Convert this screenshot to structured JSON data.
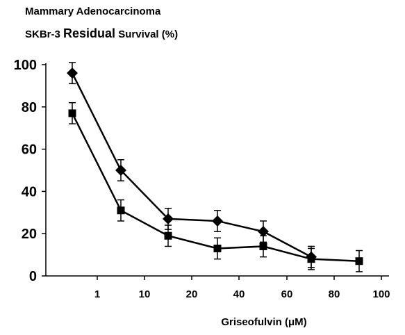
{
  "title_line1": "Mammary Adenocarcinoma",
  "title_line2_prefix": "SKBr-3",
  "title_line2_emphasis": "Residual",
  "title_line2_suffix": "Survival (%)",
  "chart_data": {
    "type": "line",
    "xlabel": "Griseofulvin (μM)",
    "ylabel": "",
    "x_tick_labels": [
      "1",
      "10",
      "20",
      "40",
      "60",
      "80",
      "100"
    ],
    "y_tick_labels": [
      "0",
      "20",
      "40",
      "60",
      "80",
      "100"
    ],
    "ylim": [
      0,
      100
    ],
    "grid": false,
    "legend": "none",
    "series": [
      {
        "marker": "diamond",
        "color": "#000000",
        "points": [
          {
            "x": 0.5,
            "y": 96,
            "err": 5
          },
          {
            "x": 5,
            "y": 50,
            "err": 5
          },
          {
            "x": 15,
            "y": 27,
            "err": 5
          },
          {
            "x": 30,
            "y": 26,
            "err": 5
          },
          {
            "x": 50,
            "y": 21,
            "err": 5
          },
          {
            "x": 70,
            "y": 9,
            "err": 5
          }
        ]
      },
      {
        "marker": "square",
        "color": "#000000",
        "points": [
          {
            "x": 0.5,
            "y": 77,
            "err": 5
          },
          {
            "x": 5,
            "y": 31,
            "err": 5
          },
          {
            "x": 15,
            "y": 19,
            "err": 5
          },
          {
            "x": 30,
            "y": 13,
            "err": 5
          },
          {
            "x": 50,
            "y": 14,
            "err": 5
          },
          {
            "x": 70,
            "y": 8,
            "err": 5
          },
          {
            "x": 90,
            "y": 7,
            "err": 5
          }
        ]
      }
    ]
  }
}
